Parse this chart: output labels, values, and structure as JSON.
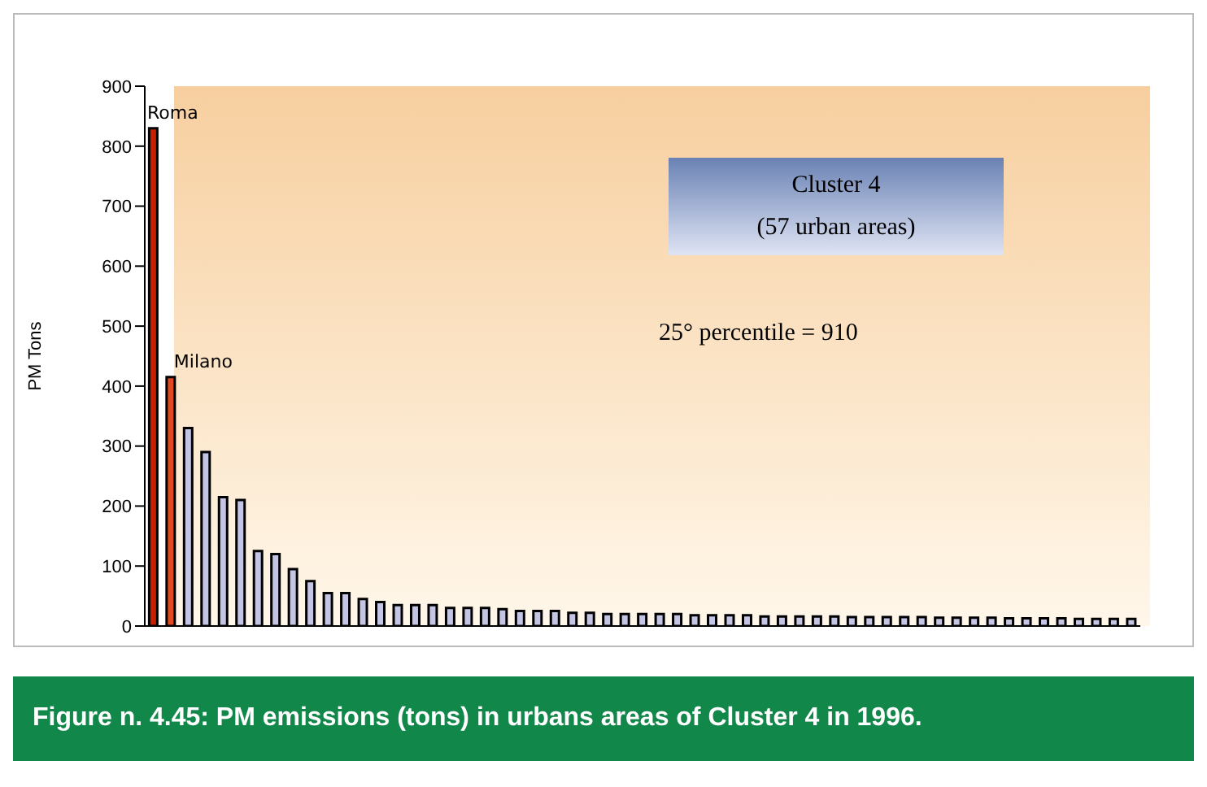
{
  "chart_data": {
    "type": "bar",
    "title": "Figure n. 4.45: PM emissions (tons) in urbans areas of Cluster 4 in 1996.",
    "ylabel": "PM Tons",
    "categories": [
      null,
      null,
      null,
      null,
      null,
      null,
      null,
      null,
      null,
      null,
      null,
      null,
      null,
      null,
      null,
      null,
      null,
      null,
      null,
      null,
      null,
      null,
      null,
      null,
      null,
      null,
      null,
      null,
      null,
      null,
      null,
      null,
      null,
      null,
      null,
      null,
      null,
      null,
      null,
      null,
      null,
      null,
      null,
      null,
      null,
      null,
      null,
      null,
      null,
      null,
      null,
      null,
      null,
      null,
      null,
      null,
      null
    ],
    "values": [
      830,
      415,
      330,
      290,
      215,
      210,
      125,
      120,
      95,
      75,
      55,
      55,
      45,
      40,
      35,
      35,
      35,
      30,
      30,
      30,
      28,
      25,
      25,
      25,
      22,
      22,
      20,
      20,
      20,
      20,
      20,
      18,
      18,
      18,
      18,
      16,
      16,
      16,
      16,
      16,
      15,
      15,
      15,
      15,
      15,
      14,
      14,
      14,
      14,
      13,
      13,
      13,
      13,
      12,
      12,
      12,
      12
    ],
    "colors": [
      "#c81e00",
      "#e04a20",
      "#c4c4e4",
      "#c4c4e4",
      "#c4c4e4",
      "#c4c4e4",
      "#c4c4e4",
      "#c4c4e4",
      "#c4c4e4",
      "#c4c4e4",
      "#c4c4e4",
      "#c4c4e4",
      "#c4c4e4",
      "#c4c4e4",
      "#c4c4e4",
      "#c4c4e4",
      "#c4c4e4",
      "#c4c4e4",
      "#c4c4e4",
      "#c4c4e4",
      "#c4c4e4",
      "#c4c4e4",
      "#c4c4e4",
      "#c4c4e4",
      "#c4c4e4",
      "#c4c4e4",
      "#c4c4e4",
      "#c4c4e4",
      "#c4c4e4",
      "#c4c4e4",
      "#c4c4e4",
      "#c4c4e4",
      "#c4c4e4",
      "#c4c4e4",
      "#c4c4e4",
      "#c4c4e4",
      "#c4c4e4",
      "#c4c4e4",
      "#c4c4e4",
      "#c4c4e4",
      "#c4c4e4",
      "#c4c4e4",
      "#c4c4e4",
      "#c4c4e4",
      "#c4c4e4",
      "#c4c4e4",
      "#c4c4e4",
      "#c4c4e4",
      "#c4c4e4",
      "#c4c4e4",
      "#c4c4e4",
      "#c4c4e4",
      "#c4c4e4",
      "#c4c4e4",
      "#c4c4e4",
      "#c4c4e4",
      "#c4c4e4"
    ],
    "ylim": [
      0,
      900
    ],
    "yticks": [
      0,
      100,
      200,
      300,
      400,
      500,
      600,
      700,
      800,
      900
    ],
    "annotations": [
      "Roma",
      "Milano",
      "Cluster 4\n(57 urban areas)",
      "25° percentile = 910"
    ]
  }
}
